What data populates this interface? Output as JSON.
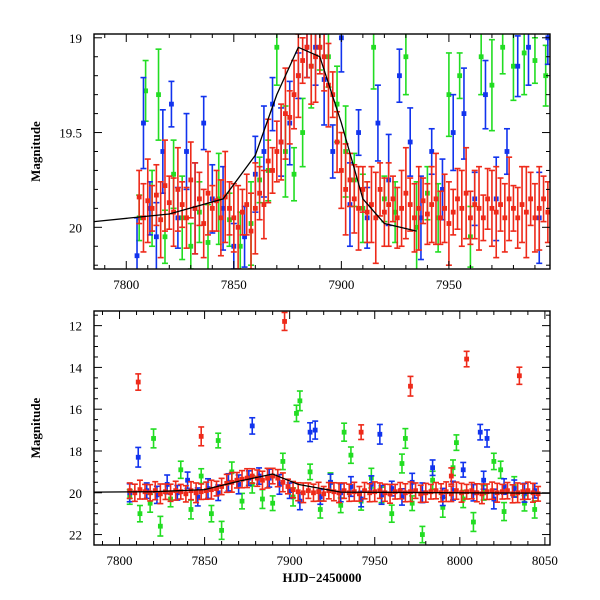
{
  "chart_data": [
    {
      "type": "scatter",
      "panel": "top",
      "title": "",
      "xlabel": "",
      "ylabel": "Magnitude",
      "xlim": [
        7785,
        7997
      ],
      "ylim": [
        20.22,
        18.98
      ],
      "y_inverted": true,
      "xticks": [
        7800,
        7850,
        7900,
        7950
      ],
      "xtick_labels": [
        "7800",
        "7850",
        "7900",
        "7950"
      ],
      "yticks": [
        19,
        19.5,
        20
      ],
      "ytick_labels": [
        "19",
        "19.5",
        "20"
      ],
      "grid": false,
      "legend": "none",
      "series": [
        {
          "color": "#22dd22",
          "x": [
            7806,
            7809,
            7812,
            7815,
            7818,
            7822,
            7826,
            7830,
            7834,
            7838,
            7843,
            7848,
            7853,
            7858,
            7862,
            7866,
            7870,
            7874,
            7878,
            7882,
            7886,
            7890,
            7894,
            7898,
            7902,
            7906,
            7910,
            7915,
            7920,
            7925,
            7930,
            7935,
            7940,
            7945,
            7950,
            7955,
            7960,
            7965,
            7970,
            7975,
            7980,
            7985,
            7990,
            7995
          ],
          "y": [
            19.95,
            19.28,
            19.9,
            19.3,
            20.05,
            19.72,
            19.95,
            20.1,
            19.92,
            20.08,
            19.85,
            19.96,
            20.1,
            19.98,
            19.75,
            19.7,
            19.05,
            19.6,
            19.72,
            19.5,
            19.15,
            19.05,
            19.1,
            19.35,
            19.6,
            19.75,
            19.9,
            19.05,
            19.85,
            19.92,
            19.1,
            20.0,
            19.82,
            19.95,
            19.3,
            19.2,
            20.05,
            19.1,
            19.25,
            19.05,
            19.15,
            19.08,
            19.12,
            19.2
          ]
        },
        {
          "color": "#1133ee",
          "x": [
            7805,
            7808,
            7811,
            7814,
            7817,
            7821,
            7824,
            7828,
            7832,
            7836,
            7840,
            7845,
            7850,
            7855,
            7860,
            7864,
            7868,
            7872,
            7876,
            7880,
            7884,
            7888,
            7892,
            7896,
            7900,
            7904,
            7908,
            7912,
            7917,
            7922,
            7927,
            7932,
            7937,
            7942,
            7947,
            7952,
            7957,
            7962,
            7967,
            7972,
            7977,
            7982,
            7987,
            7992,
            7996
          ],
          "y": [
            20.15,
            19.45,
            19.9,
            20.05,
            19.6,
            19.35,
            19.95,
            19.6,
            19.9,
            19.45,
            19.85,
            19.9,
            20.1,
            20.05,
            19.72,
            19.6,
            19.35,
            19.55,
            19.45,
            19.2,
            19.05,
            19.05,
            19.22,
            19.6,
            19.0,
            19.88,
            19.5,
            19.95,
            19.45,
            19.75,
            19.2,
            19.55,
            19.95,
            19.6,
            19.8,
            19.5,
            19.4,
            19.85,
            19.3,
            19.85,
            19.6,
            19.15,
            19.05,
            19.95,
            19.0
          ]
        },
        {
          "color": "#ee2a1a",
          "x": [
            7806,
            7808,
            7810,
            7812,
            7814,
            7816,
            7818,
            7820,
            7822,
            7824,
            7826,
            7828,
            7830,
            7832,
            7834,
            7836,
            7838,
            7840,
            7842,
            7844,
            7846,
            7848,
            7850,
            7852,
            7854,
            7856,
            7858,
            7860,
            7862,
            7864,
            7866,
            7868,
            7870,
            7872,
            7874,
            7876,
            7878,
            7880,
            7882,
            7884,
            7886,
            7888,
            7890,
            7892,
            7894,
            7896,
            7898,
            7900,
            7902,
            7904,
            7906,
            7908,
            7910,
            7912,
            7914,
            7916,
            7918,
            7920,
            7922,
            7924,
            7926,
            7928,
            7930,
            7932,
            7934,
            7936,
            7938,
            7940,
            7942,
            7944,
            7946,
            7948,
            7950,
            7952,
            7954,
            7956,
            7958,
            7960,
            7962,
            7964,
            7966,
            7968,
            7970,
            7972,
            7974,
            7976,
            7978,
            7980,
            7982,
            7984,
            7986,
            7988,
            7990,
            7992,
            7994,
            7996
          ],
          "y": [
            19.84,
            19.95,
            19.86,
            19.9,
            19.83,
            19.96,
            19.78,
            19.87,
            19.92,
            19.8,
            19.88,
            19.95,
            19.75,
            19.9,
            19.85,
            19.98,
            19.82,
            19.9,
            19.86,
            19.95,
            19.84,
            19.9,
            19.95,
            20.0,
            19.92,
            19.88,
            20.02,
            19.9,
            19.82,
            19.88,
            19.65,
            19.7,
            19.6,
            19.55,
            19.4,
            19.42,
            19.3,
            19.2,
            19.12,
            19.05,
            19.15,
            19.1,
            19.05,
            19.1,
            19.25,
            19.3,
            19.55,
            19.7,
            19.8,
            19.75,
            19.85,
            19.9,
            19.8,
            19.92,
            19.88,
            19.95,
            19.8,
            19.92,
            19.88,
            19.85,
            19.95,
            19.9,
            19.82,
            19.88,
            19.95,
            19.9,
            19.86,
            19.93,
            19.88,
            19.85,
            19.95,
            19.9,
            19.98,
            19.92,
            19.85,
            19.9,
            19.82,
            19.95,
            19.88,
            19.9,
            19.95,
            19.85,
            19.9,
            19.92,
            19.88,
            19.95,
            19.85,
            19.9,
            19.95,
            19.88,
            19.92,
            19.85,
            19.95,
            19.9,
            19.85,
            19.92
          ]
        }
      ],
      "model_curve": {
        "color": "#000000",
        "x": [
          7785,
          7820,
          7845,
          7860,
          7870,
          7880,
          7890,
          7900,
          7910,
          7920,
          7935
        ],
        "y": [
          19.97,
          19.93,
          19.85,
          19.62,
          19.3,
          19.05,
          19.1,
          19.45,
          19.85,
          19.98,
          20.02
        ]
      }
    },
    {
      "type": "scatter",
      "panel": "bottom",
      "title": "",
      "xlabel": "HJD−2450000",
      "ylabel": "Magnitude",
      "xlim": [
        7785,
        8053
      ],
      "ylim": [
        22.5,
        11.3
      ],
      "y_inverted": true,
      "xticks": [
        7800,
        7850,
        7900,
        7950,
        8000,
        8050
      ],
      "xtick_labels": [
        "7800",
        "7850",
        "7900",
        "7950",
        "8000",
        "8050"
      ],
      "yticks": [
        12,
        14,
        16,
        18,
        20,
        22
      ],
      "ytick_labels": [
        "12",
        "14",
        "16",
        "18",
        "20",
        "22"
      ],
      "grid": false,
      "legend": "none",
      "series": [
        {
          "color": "#22dd22",
          "x": [
            7806,
            7812,
            7818,
            7824,
            7830,
            7836,
            7842,
            7848,
            7854,
            7860,
            7866,
            7872,
            7878,
            7884,
            7890,
            7896,
            7902,
            7906,
            7912,
            7918,
            7924,
            7930,
            7936,
            7942,
            7948,
            7954,
            7960,
            7966,
            7972,
            7978,
            7984,
            7990,
            7996,
            8002,
            8008,
            8014,
            8020,
            8026,
            8032,
            8038,
            8044,
            7820,
            7858,
            7904,
            7932,
            7968,
            7998,
            8024
          ],
          "y": [
            20.2,
            21.0,
            20.5,
            21.6,
            20.3,
            18.9,
            20.8,
            19.2,
            21.0,
            21.8,
            19.0,
            20.4,
            19.6,
            20.3,
            20.5,
            18.5,
            20.2,
            15.6,
            19.0,
            20.8,
            19.5,
            20.6,
            18.2,
            20.4,
            19.3,
            20.1,
            21.0,
            18.6,
            20.5,
            22.0,
            19.4,
            20.7,
            18.8,
            20.3,
            21.4,
            20.0,
            18.5,
            20.9,
            19.7,
            20.5,
            20.8,
            17.4,
            17.5,
            16.2,
            17.1,
            17.4,
            17.6,
            18.9
          ]
        },
        {
          "color": "#1133ee",
          "x": [
            7806,
            7811,
            7816,
            7822,
            7828,
            7834,
            7840,
            7846,
            7852,
            7858,
            7864,
            7870,
            7876,
            7882,
            7888,
            7894,
            7900,
            7906,
            7912,
            7918,
            7924,
            7930,
            7936,
            7942,
            7948,
            7954,
            7960,
            7966,
            7972,
            7978,
            7984,
            7990,
            7996,
            8002,
            8008,
            8014,
            8020,
            8026,
            8032,
            8038,
            8044,
            7878,
            7915,
            7953,
            8012,
            8016
          ],
          "y": [
            20.0,
            18.3,
            19.9,
            20.1,
            19.6,
            20.0,
            19.4,
            20.2,
            19.8,
            20.0,
            19.5,
            19.6,
            19.3,
            19.2,
            19.3,
            19.6,
            19.9,
            20.4,
            17.1,
            20.2,
            19.5,
            20.0,
            19.7,
            20.3,
            19.6,
            20.1,
            19.8,
            20.2,
            19.5,
            20.0,
            18.8,
            20.2,
            19.9,
            18.9,
            20.0,
            19.4,
            20.3,
            19.7,
            19.8,
            20.0,
            19.9,
            16.8,
            17.0,
            17.2,
            17.1,
            17.4
          ]
        },
        {
          "color": "#ee2a1a",
          "x": [
            7806,
            7809,
            7812,
            7815,
            7818,
            7821,
            7824,
            7827,
            7830,
            7833,
            7836,
            7839,
            7842,
            7845,
            7848,
            7851,
            7854,
            7857,
            7860,
            7863,
            7866,
            7869,
            7872,
            7875,
            7878,
            7881,
            7884,
            7887,
            7890,
            7893,
            7896,
            7899,
            7902,
            7905,
            7908,
            7911,
            7914,
            7917,
            7920,
            7923,
            7926,
            7929,
            7932,
            7935,
            7938,
            7941,
            7944,
            7947,
            7950,
            7953,
            7956,
            7959,
            7962,
            7965,
            7968,
            7971,
            7974,
            7977,
            7980,
            7983,
            7986,
            7989,
            7992,
            7995,
            7998,
            8001,
            8004,
            8007,
            8010,
            8013,
            8016,
            8019,
            8022,
            8025,
            8028,
            8031,
            8034,
            8037,
            8040,
            8043,
            8046,
            7811,
            7897,
            7971,
            8004,
            8035,
            7848,
            7942,
            7995
          ],
          "y": [
            19.9,
            20.0,
            19.85,
            19.95,
            20.0,
            19.9,
            20.05,
            19.95,
            20.0,
            19.9,
            19.95,
            20.05,
            19.9,
            20.0,
            19.95,
            19.9,
            19.85,
            19.8,
            19.7,
            19.55,
            19.5,
            19.4,
            19.35,
            19.3,
            19.2,
            19.3,
            19.4,
            19.3,
            19.2,
            19.3,
            19.5,
            19.7,
            19.85,
            19.95,
            20.0,
            19.9,
            20.0,
            19.95,
            20.05,
            19.9,
            19.95,
            20.0,
            19.9,
            20.0,
            19.95,
            20.05,
            19.9,
            20.0,
            19.95,
            19.9,
            20.0,
            20.05,
            19.95,
            19.9,
            20.0,
            19.95,
            19.9,
            20.05,
            20.0,
            19.95,
            19.9,
            20.0,
            19.95,
            20.05,
            19.9,
            20.0,
            19.95,
            19.9,
            20.0,
            20.05,
            19.95,
            19.9,
            20.0,
            19.95,
            19.9,
            20.05,
            20.0,
            19.95,
            19.9,
            20.0,
            20.05,
            14.7,
            11.8,
            14.9,
            13.6,
            14.4,
            17.3,
            17.1,
            19.2
          ]
        }
      ],
      "model_curve": {
        "color": "#000000",
        "x": [
          7785,
          7820,
          7850,
          7870,
          7890,
          7905,
          7930,
          8000,
          8053
        ],
        "y": [
          19.97,
          19.95,
          19.85,
          19.45,
          19.1,
          19.6,
          19.97,
          20.0,
          20.02
        ]
      }
    }
  ]
}
